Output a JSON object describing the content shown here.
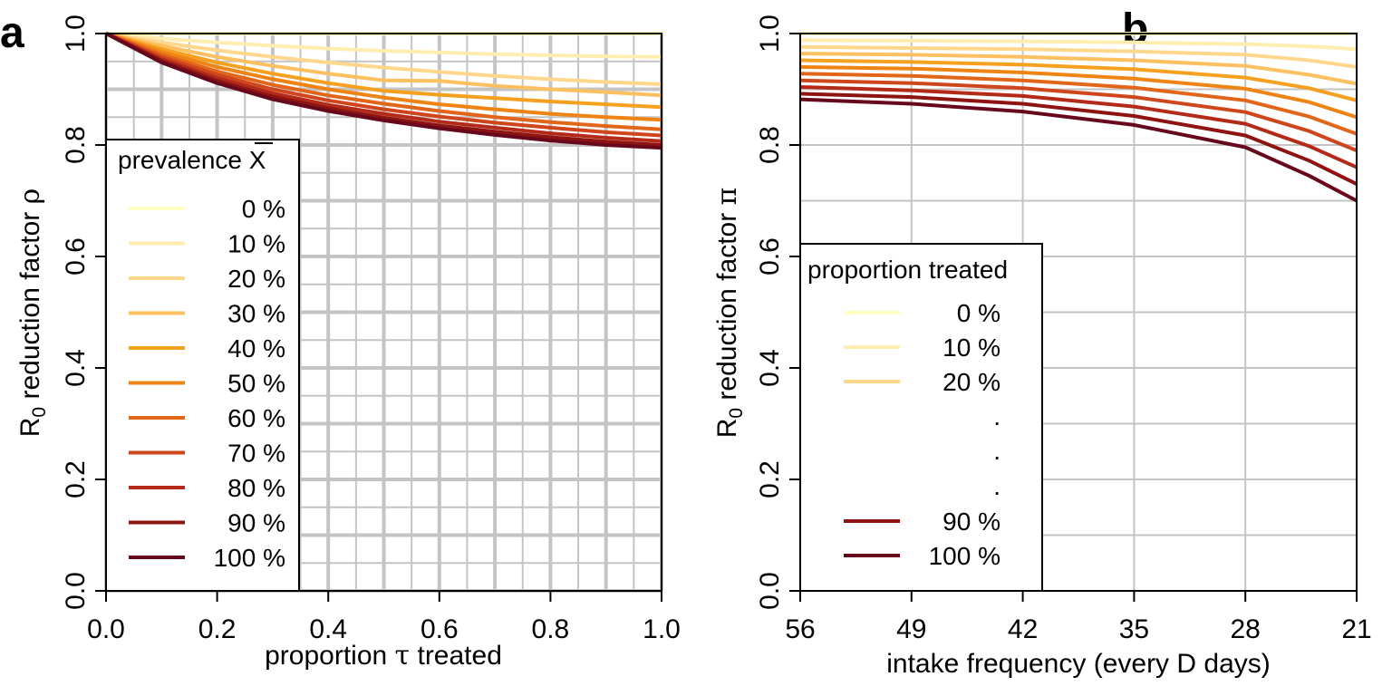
{
  "chart_data": [
    {
      "panel": "a",
      "type": "line",
      "xlabel_pre": "proportion",
      "xlabel_sym": "τ",
      "xlabel_post": "treated",
      "ylabel_pre": "R",
      "ylabel_sub": "0",
      "ylabel_post": "reduction factor",
      "ylabel_sym": "ρ",
      "xlim": [
        0,
        1
      ],
      "ylim": [
        0,
        1
      ],
      "xticks": [
        "0.0",
        "0.2",
        "0.4",
        "0.6",
        "0.8",
        "1.0"
      ],
      "yticks": [
        "0.0",
        "0.2",
        "0.4",
        "0.6",
        "0.8",
        "1.0"
      ],
      "grid": true,
      "legend_title": "prevalence X",
      "legend_position": "left",
      "x": [
        0,
        0.1,
        0.2,
        0.3,
        0.4,
        0.5,
        0.6,
        0.7,
        0.8,
        0.9,
        1.0
      ],
      "series": [
        {
          "name": "0 %",
          "color": "#ffffc4",
          "values": [
            1.0,
            1.0,
            1.0,
            1.0,
            1.0,
            1.0,
            1.0,
            1.0,
            1.0,
            1.0,
            1.0
          ]
        },
        {
          "name": "10 %",
          "color": "#ffeeb0",
          "values": [
            1.0,
            0.991,
            0.984,
            0.978,
            0.973,
            0.969,
            0.966,
            0.963,
            0.961,
            0.959,
            0.958
          ]
        },
        {
          "name": "20 %",
          "color": "#ffd88e",
          "values": [
            1.0,
            0.984,
            0.97,
            0.958,
            0.948,
            0.939,
            0.931,
            0.924,
            0.918,
            0.913,
            0.909
          ]
        },
        {
          "name": "30 %",
          "color": "#fcc060",
          "values": [
            1.0,
            0.978,
            0.958,
            0.942,
            0.928,
            0.916,
            0.915,
            0.906,
            0.9,
            0.895,
            0.889
          ]
        },
        {
          "name": "40 %",
          "color": "#f6a020",
          "values": [
            1.0,
            0.972,
            0.948,
            0.928,
            0.911,
            0.897,
            0.89,
            0.884,
            0.878,
            0.873,
            0.868
          ]
        },
        {
          "name": "50 %",
          "color": "#ee8414",
          "values": [
            1.0,
            0.967,
            0.94,
            0.918,
            0.9,
            0.885,
            0.873,
            0.864,
            0.856,
            0.85,
            0.845
          ]
        },
        {
          "name": "60 %",
          "color": "#e2661a",
          "values": [
            1.0,
            0.962,
            0.932,
            0.908,
            0.889,
            0.874,
            0.861,
            0.85,
            0.841,
            0.834,
            0.828
          ]
        },
        {
          "name": "70 %",
          "color": "#d0461c",
          "values": [
            1.0,
            0.958,
            0.926,
            0.9,
            0.88,
            0.864,
            0.851,
            0.84,
            0.831,
            0.823,
            0.817
          ]
        },
        {
          "name": "80 %",
          "color": "#b42a18",
          "values": [
            1.0,
            0.954,
            0.92,
            0.893,
            0.872,
            0.856,
            0.842,
            0.831,
            0.821,
            0.813,
            0.807
          ]
        },
        {
          "name": "90 %",
          "color": "#8e1412",
          "values": [
            1.0,
            0.951,
            0.915,
            0.887,
            0.866,
            0.849,
            0.835,
            0.824,
            0.814,
            0.806,
            0.8
          ]
        },
        {
          "name": "100 %",
          "color": "#68081c",
          "values": [
            1.0,
            0.948,
            0.911,
            0.882,
            0.861,
            0.844,
            0.83,
            0.818,
            0.808,
            0.8,
            0.795
          ]
        }
      ]
    },
    {
      "panel": "b",
      "type": "line",
      "xlabel": "intake frequency (every D days)",
      "ylabel_pre": "R",
      "ylabel_sub": "0",
      "ylabel_post": "reduction factor",
      "ylabel_sym": "π",
      "xlim": [
        56,
        21
      ],
      "ylim": [
        0,
        1
      ],
      "xticks": [
        "56",
        "49",
        "42",
        "35",
        "28",
        "21"
      ],
      "yticks": [
        "0.0",
        "0.2",
        "0.4",
        "0.6",
        "0.8",
        "1.0"
      ],
      "grid": true,
      "legend_title": "proportion treated",
      "legend_position": "bottom-left",
      "legend_dots": [
        ".",
        ".",
        "."
      ],
      "x": [
        56,
        49,
        42,
        35,
        28,
        24,
        21
      ],
      "series": [
        {
          "name": "0 %",
          "color": "#ffffc4",
          "values": [
            1.0,
            1.0,
            1.0,
            1.0,
            1.0,
            1.0,
            1.0
          ]
        },
        {
          "name": "10 %",
          "color": "#ffeeb0",
          "values": [
            0.988,
            0.987,
            0.986,
            0.984,
            0.981,
            0.977,
            0.972
          ]
        },
        {
          "name": "20 %",
          "color": "#ffd88e",
          "values": [
            0.976,
            0.974,
            0.972,
            0.968,
            0.962,
            0.952,
            0.94
          ]
        },
        {
          "name": "30 %",
          "color": "#fcc060",
          "values": [
            0.964,
            0.962,
            0.958,
            0.952,
            0.942,
            0.926,
            0.91
          ]
        },
        {
          "name": "40 %",
          "color": "#f6a020",
          "values": [
            0.952,
            0.949,
            0.944,
            0.936,
            0.921,
            0.902,
            0.88
          ]
        },
        {
          "name": "50 %",
          "color": "#ee8414",
          "values": [
            0.94,
            0.937,
            0.93,
            0.919,
            0.901,
            0.877,
            0.85
          ]
        },
        {
          "name": "60 %",
          "color": "#e2661a",
          "values": [
            0.928,
            0.924,
            0.916,
            0.903,
            0.88,
            0.851,
            0.82
          ]
        },
        {
          "name": "70 %",
          "color": "#d0461c",
          "values": [
            0.916,
            0.911,
            0.902,
            0.886,
            0.859,
            0.825,
            0.79
          ]
        },
        {
          "name": "80 %",
          "color": "#b42a18",
          "values": [
            0.904,
            0.898,
            0.888,
            0.869,
            0.838,
            0.798,
            0.76
          ]
        },
        {
          "name": "90 %",
          "color": "#8e1412",
          "values": [
            0.892,
            0.886,
            0.874,
            0.852,
            0.817,
            0.772,
            0.73
          ]
        },
        {
          "name": "100 %",
          "color": "#68081c",
          "values": [
            0.882,
            0.874,
            0.86,
            0.836,
            0.796,
            0.745,
            0.7
          ]
        }
      ],
      "legend_series": [
        "0 %",
        "10 %",
        "20 %",
        "90 %",
        "100 %"
      ]
    }
  ]
}
